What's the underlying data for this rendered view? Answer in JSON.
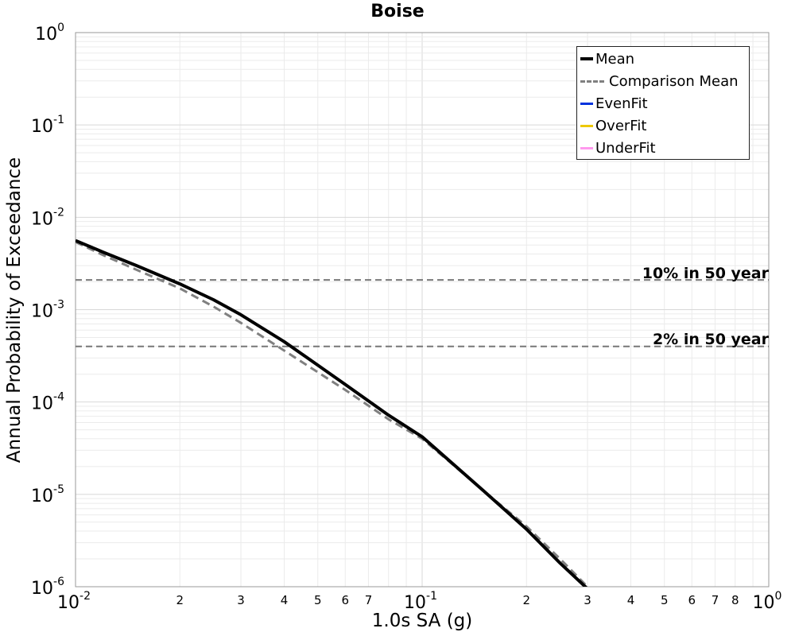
{
  "chart_data": {
    "type": "line",
    "title": "Boise",
    "xlabel": "1.0s SA (g)",
    "ylabel": "Annual Probability of Exceedance",
    "x_scale": "log",
    "y_scale": "log",
    "xlim": [
      0.01,
      1.0
    ],
    "ylim": [
      1e-06,
      1.0
    ],
    "grid": true,
    "legend_position": "top-right",
    "x_ticks": [
      {
        "base": "10",
        "exp": "-2",
        "value": 0.01
      },
      {
        "base": "10",
        "exp": "-1",
        "value": 0.1
      },
      {
        "base": "10",
        "exp": "0",
        "value": 1.0
      }
    ],
    "x_minor_tick_labels": [
      "2",
      "3",
      "4",
      "5",
      "6",
      "7",
      "2",
      "3",
      "4",
      "5",
      "6",
      "7",
      "8"
    ],
    "y_ticks": [
      {
        "base": "10",
        "exp": "0",
        "value": 1.0
      },
      {
        "base": "10",
        "exp": "-1",
        "value": 0.1
      },
      {
        "base": "10",
        "exp": "-2",
        "value": 0.01
      },
      {
        "base": "10",
        "exp": "-3",
        "value": 0.001
      },
      {
        "base": "10",
        "exp": "-4",
        "value": 0.0001
      },
      {
        "base": "10",
        "exp": "-5",
        "value": 1e-05
      },
      {
        "base": "10",
        "exp": "-6",
        "value": 1e-06
      }
    ],
    "series": [
      {
        "name": "Mean",
        "color": "#000000",
        "style": "solid",
        "x": [
          0.01,
          0.012,
          0.015,
          0.02,
          0.025,
          0.03,
          0.04,
          0.05,
          0.06,
          0.08,
          0.1,
          0.12,
          0.15,
          0.2,
          0.25,
          0.3
        ],
        "y": [
          0.0056,
          0.0042,
          0.003,
          0.0019,
          0.00128,
          0.00088,
          0.00045,
          0.00025,
          0.000155,
          7.2e-05,
          4.2e-05,
          2.3e-05,
          1.1e-05,
          4.2e-06,
          1.8e-06,
          9.5e-07
        ]
      },
      {
        "name": "Comparison Mean",
        "color": "#808080",
        "style": "dashed",
        "x": [
          0.01,
          0.012,
          0.015,
          0.02,
          0.025,
          0.03,
          0.04,
          0.05,
          0.06,
          0.08,
          0.1,
          0.12,
          0.15,
          0.2,
          0.25,
          0.3
        ],
        "y": [
          0.0054,
          0.0039,
          0.0027,
          0.0017,
          0.00108,
          0.00072,
          0.00036,
          0.00021,
          0.000135,
          6.5e-05,
          4e-05,
          2.25e-05,
          1.1e-05,
          4.5e-06,
          2e-06,
          1e-06
        ]
      },
      {
        "name": "EvenFit",
        "color": "#0033dd",
        "style": "solid",
        "x": [],
        "y": []
      },
      {
        "name": "OverFit",
        "color": "#eec900",
        "style": "solid",
        "x": [],
        "y": []
      },
      {
        "name": "UnderFit",
        "color": "#ff99ee",
        "style": "solid",
        "x": [],
        "y": []
      }
    ],
    "reference_lines": [
      {
        "label": "10% in 50 year",
        "y": 0.0021
      },
      {
        "label": "2% in 50 year",
        "y": 0.0004
      }
    ]
  }
}
